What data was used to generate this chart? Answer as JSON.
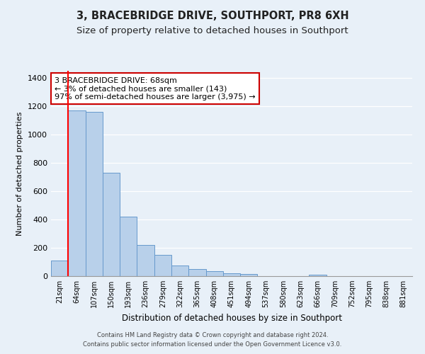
{
  "title": "3, BRACEBRIDGE DRIVE, SOUTHPORT, PR8 6XH",
  "subtitle": "Size of property relative to detached houses in Southport",
  "xlabel": "Distribution of detached houses by size in Southport",
  "ylabel": "Number of detached properties",
  "bar_labels": [
    "21sqm",
    "64sqm",
    "107sqm",
    "150sqm",
    "193sqm",
    "236sqm",
    "279sqm",
    "322sqm",
    "365sqm",
    "408sqm",
    "451sqm",
    "494sqm",
    "537sqm",
    "580sqm",
    "623sqm",
    "666sqm",
    "709sqm",
    "752sqm",
    "795sqm",
    "838sqm",
    "881sqm"
  ],
  "bar_heights": [
    108,
    1170,
    1160,
    730,
    420,
    220,
    150,
    75,
    50,
    35,
    20,
    15,
    0,
    0,
    0,
    10,
    0,
    0,
    0,
    0,
    0
  ],
  "bar_color": "#b8d0ea",
  "bar_edgecolor": "#6699cc",
  "red_line_x": 0.5,
  "annotation_title": "3 BRACEBRIDGE DRIVE: 68sqm",
  "annotation_line1": "← 3% of detached houses are smaller (143)",
  "annotation_line2": "97% of semi-detached houses are larger (3,975) →",
  "annotation_box_color": "#ffffff",
  "annotation_box_edgecolor": "#cc0000",
  "ylim": [
    0,
    1450
  ],
  "yticks": [
    0,
    200,
    400,
    600,
    800,
    1000,
    1200,
    1400
  ],
  "footer1": "Contains HM Land Registry data © Crown copyright and database right 2024.",
  "footer2": "Contains public sector information licensed under the Open Government Licence v3.0.",
  "bg_color": "#e8f0f8",
  "plot_bg_color": "#e8f0f8",
  "title_fontsize": 10.5,
  "subtitle_fontsize": 9.5
}
